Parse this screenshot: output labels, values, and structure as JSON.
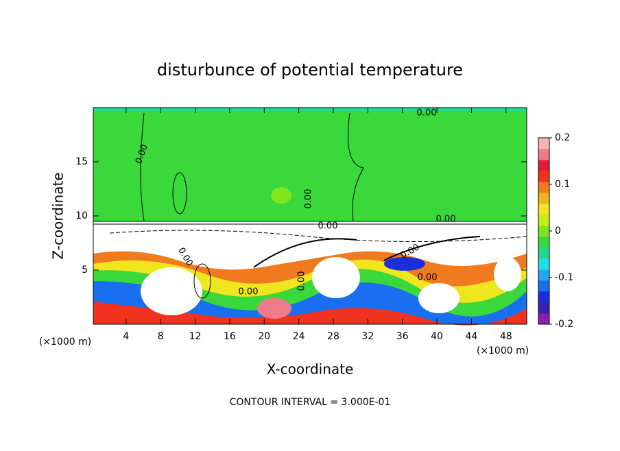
{
  "chart_data": {
    "type": "contour",
    "title": "disturbunce of potential temperature",
    "xlabel": "X-coordinate",
    "ylabel": "Z-coordinate",
    "x_unit_label": "(×1000 m)",
    "footnote": "CONTOUR INTERVAL = 3.000E-01",
    "xlim": [
      0.2,
      50.4
    ],
    "xticks": [
      4,
      8,
      12,
      16,
      20,
      24,
      28,
      32,
      36,
      40,
      44,
      48
    ],
    "ylim": [
      0,
      20
    ],
    "yticks": [
      5,
      10,
      15
    ],
    "clim": [
      -0.2,
      0.2
    ],
    "cticks": [
      -0.2,
      -0.1,
      0,
      0.1,
      0.2
    ],
    "colorbar_colors": [
      "#8a1fa8",
      "#3a1fb0",
      "#1a2ee0",
      "#1a6ef0",
      "#22a8f0",
      "#22e0e0",
      "#22d890",
      "#3ad83a",
      "#7ee61e",
      "#c6ec1e",
      "#f0e61e",
      "#f0b41e",
      "#f07a1e",
      "#f0321e",
      "#e01e3c",
      "#f07a8a",
      "#f8b4b4"
    ],
    "contour_labels": [
      "0.00",
      "0.00",
      "0.00",
      "0.00",
      "0.00",
      "0.00",
      "0.00",
      "0.00",
      "0.00",
      "0.00"
    ]
  }
}
